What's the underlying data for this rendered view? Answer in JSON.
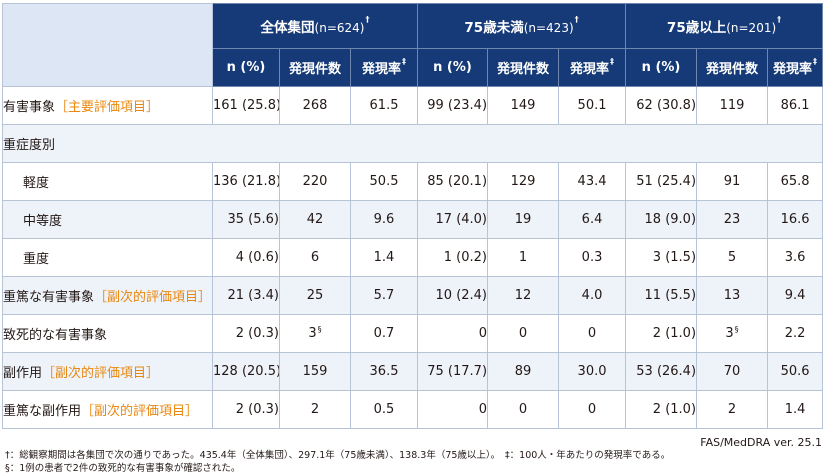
{
  "header": {
    "groups": [
      {
        "title": "全体集団",
        "n": "(n=624)",
        "mark": "†"
      },
      {
        "title": "75歳未満",
        "n": "(n=423)",
        "mark": "†"
      },
      {
        "title": "75歳以上",
        "n": "(n=201)",
        "mark": "†"
      }
    ],
    "subcols": {
      "n_pct": "n (%)",
      "count": "発現件数",
      "rate": "発現率",
      "rate_mark": "‡"
    }
  },
  "rows": [
    {
      "label": "有害事象",
      "tag": "［主要評価項目］",
      "cells": [
        {
          "np": "161 (25.8)",
          "cnt": "268",
          "rate": "61.5"
        },
        {
          "np": "99 (23.4)",
          "cnt": "149",
          "rate": "50.1"
        },
        {
          "np": "62 (30.8)",
          "cnt": "119",
          "rate": "86.1"
        }
      ]
    },
    {
      "label": "重症度別",
      "section": true
    },
    {
      "label": "軽度",
      "indent": true,
      "cells": [
        {
          "np": "136 (21.8)",
          "cnt": "220",
          "rate": "50.5"
        },
        {
          "np": "85 (20.1)",
          "cnt": "129",
          "rate": "43.4"
        },
        {
          "np": "51 (25.4)",
          "cnt": "91",
          "rate": "65.8"
        }
      ]
    },
    {
      "label": "中等度",
      "indent": true,
      "cells": [
        {
          "np": "35 (5.6)",
          "cnt": "42",
          "rate": "9.6"
        },
        {
          "np": "17 (4.0)",
          "cnt": "19",
          "rate": "6.4"
        },
        {
          "np": "18 (9.0)",
          "cnt": "23",
          "rate": "16.6"
        }
      ]
    },
    {
      "label": "重度",
      "indent": true,
      "cells": [
        {
          "np": "4 (0.6)",
          "cnt": "6",
          "rate": "1.4"
        },
        {
          "np": "1 (0.2)",
          "cnt": "1",
          "rate": "0.3"
        },
        {
          "np": "3 (1.5)",
          "cnt": "5",
          "rate": "3.6"
        }
      ]
    },
    {
      "label": "重篤な有害事象",
      "tag": "［副次的評価項目］",
      "cells": [
        {
          "np": "21 (3.4)",
          "cnt": "25",
          "rate": "5.7"
        },
        {
          "np": "10 (2.4)",
          "cnt": "12",
          "rate": "4.0"
        },
        {
          "np": "11 (5.5)",
          "cnt": "13",
          "rate": "9.4"
        }
      ]
    },
    {
      "label": "致死的な有害事象",
      "cells": [
        {
          "np": "2 (0.3)",
          "cnt": "3",
          "cnt_mark": "§",
          "rate": "0.7"
        },
        {
          "np": "0",
          "cnt": "0",
          "rate": "0"
        },
        {
          "np": "2 (1.0)",
          "cnt": "3",
          "cnt_mark": "§",
          "rate": "2.2"
        }
      ]
    },
    {
      "label": "副作用",
      "tag": "［副次的評価項目］",
      "cells": [
        {
          "np": "128 (20.5)",
          "cnt": "159",
          "rate": "36.5"
        },
        {
          "np": "75 (17.7)",
          "cnt": "89",
          "rate": "30.0"
        },
        {
          "np": "53 (26.4)",
          "cnt": "70",
          "rate": "50.6"
        }
      ]
    },
    {
      "label": "重篤な副作用",
      "tag": "［副次的評価項目］",
      "cells": [
        {
          "np": "2 (0.3)",
          "cnt": "2",
          "rate": "0.5"
        },
        {
          "np": "0",
          "cnt": "0",
          "rate": "0"
        },
        {
          "np": "2 (1.0)",
          "cnt": "2",
          "rate": "1.4"
        }
      ]
    }
  ],
  "source": "FAS/MedDRA ver. 25.1",
  "footnotes": [
    "†：総観察期間は各集団で次の通りであった。435.4年（全体集団）、297.1年（75歳未満）、138.3年（75歳以上）。　‡：100人・年あたりの発現率である。",
    "§：1例の患者で2件の致死的な有害事象が確認された。"
  ],
  "colors": {
    "header_bg": "#163a78",
    "corner_bg": "#dce6f4",
    "stripe_bg": "#eef2f9",
    "tag": "#e8880f",
    "border": "#b7c4d8"
  }
}
